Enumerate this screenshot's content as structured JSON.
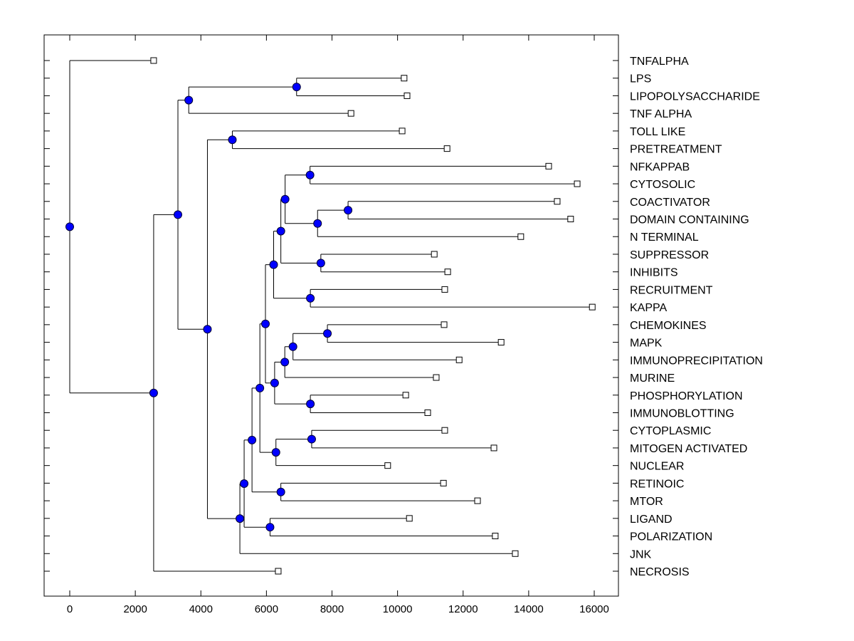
{
  "chart_data": {
    "type": "dendrogram",
    "title": "",
    "xlabel": "",
    "ylabel": "",
    "xlim": [
      -800,
      16700
    ],
    "x_ticks": [
      0,
      2000,
      4000,
      6000,
      8000,
      10000,
      12000,
      14000,
      16000
    ],
    "x_tick_labels": [
      "0",
      "2000",
      "4000",
      "6000",
      "8000",
      "10000",
      "12000",
      "14000",
      "16000"
    ],
    "grid": false,
    "leaves": [
      {
        "label": "TNFALPHA",
        "x": 2560
      },
      {
        "label": "LPS",
        "x": 10200
      },
      {
        "label": "LIPOPOLYSACCHARIDE",
        "x": 10290
      },
      {
        "label": "TNF ALPHA",
        "x": 8580
      },
      {
        "label": "TOLL LIKE",
        "x": 10140
      },
      {
        "label": "PRETREATMENT",
        "x": 11510
      },
      {
        "label": "NFKAPPAB",
        "x": 14610
      },
      {
        "label": "CYTOSOLIC",
        "x": 15480
      },
      {
        "label": "COACTIVATOR",
        "x": 14870
      },
      {
        "label": "DOMAIN CONTAINING",
        "x": 15280
      },
      {
        "label": "N TERMINAL",
        "x": 13760
      },
      {
        "label": "SUPPRESSOR",
        "x": 11120
      },
      {
        "label": "INHIBITS",
        "x": 11530
      },
      {
        "label": "RECRUITMENT",
        "x": 11440
      },
      {
        "label": "KAPPA",
        "x": 15940
      },
      {
        "label": "CHEMOKINES",
        "x": 11420
      },
      {
        "label": "MAPK",
        "x": 13160
      },
      {
        "label": "IMMUNOPRECIPITATION",
        "x": 11880
      },
      {
        "label": "MURINE",
        "x": 11180
      },
      {
        "label": "PHOSPHORYLATION",
        "x": 10250
      },
      {
        "label": "IMMUNOBLOTTING",
        "x": 10920
      },
      {
        "label": "CYTOPLASMIC",
        "x": 11440
      },
      {
        "label": "MITOGEN ACTIVATED",
        "x": 12940
      },
      {
        "label": "NUCLEAR",
        "x": 9700
      },
      {
        "label": "RETINOIC",
        "x": 11400
      },
      {
        "label": "MTOR",
        "x": 12440
      },
      {
        "label": "LIGAND",
        "x": 10360
      },
      {
        "label": "POLARIZATION",
        "x": 12980
      },
      {
        "label": "JNK",
        "x": 13590
      },
      {
        "label": "NECROSIS",
        "x": 6360
      }
    ],
    "tree": {
      "x": 0,
      "children": [
        {
          "leaf": 0
        },
        {
          "x": 2560,
          "children": [
            {
              "x": 3300,
              "children": [
                {
                  "x": 3630,
                  "children": [
                    {
                      "x": 6920,
                      "children": [
                        {
                          "leaf": 1
                        },
                        {
                          "leaf": 2
                        }
                      ]
                    },
                    {
                      "leaf": 3
                    }
                  ]
                },
                {
                  "x": 4200,
                  "children": [
                    {
                      "x": 4960,
                      "children": [
                        {
                          "leaf": 4
                        },
                        {
                          "leaf": 5
                        }
                      ]
                    },
                    {
                      "x": 5190,
                      "children": [
                        {
                          "x": 5320,
                          "children": [
                            {
                              "x": 5560,
                              "children": [
                                {
                                  "x": 5800,
                                  "children": [
                                    {
                                      "x": 5970,
                                      "children": [
                                        {
                                          "x": 6220,
                                          "children": [
                                            {
                                              "x": 6440,
                                              "children": [
                                                {
                                                  "x": 6570,
                                                  "children": [
                                                    {
                                                      "x": 7330,
                                                      "children": [
                                                        {
                                                          "leaf": 6
                                                        },
                                                        {
                                                          "leaf": 7
                                                        }
                                                      ]
                                                    },
                                                    {
                                                      "x": 7560,
                                                      "children": [
                                                        {
                                                          "x": 8490,
                                                          "children": [
                                                            {
                                                              "leaf": 8
                                                            },
                                                            {
                                                              "leaf": 9
                                                            }
                                                          ]
                                                        },
                                                        {
                                                          "leaf": 10
                                                        }
                                                      ]
                                                    }
                                                  ]
                                                },
                                                {
                                                  "x": 7660,
                                                  "children": [
                                                    {
                                                      "leaf": 11
                                                    },
                                                    {
                                                      "leaf": 12
                                                    }
                                                  ]
                                                }
                                              ]
                                            },
                                            {
                                              "x": 7340,
                                              "children": [
                                                {
                                                  "leaf": 13
                                                },
                                                {
                                                  "leaf": 14
                                                }
                                              ]
                                            }
                                          ]
                                        },
                                        {
                                          "x": 6250,
                                          "children": [
                                            {
                                              "x": 6560,
                                              "children": [
                                                {
                                                  "x": 6810,
                                                  "children": [
                                                    {
                                                      "x": 7860,
                                                      "children": [
                                                        {
                                                          "leaf": 15
                                                        },
                                                        {
                                                          "leaf": 16
                                                        }
                                                      ]
                                                    },
                                                    {
                                                      "leaf": 17
                                                    }
                                                  ]
                                                },
                                                {
                                                  "leaf": 18
                                                }
                                              ]
                                            },
                                            {
                                              "x": 7340,
                                              "children": [
                                                {
                                                  "leaf": 19
                                                },
                                                {
                                                  "leaf": 20
                                                }
                                              ]
                                            }
                                          ]
                                        }
                                      ]
                                    },
                                    {
                                      "x": 6290,
                                      "children": [
                                        {
                                          "x": 7380,
                                          "children": [
                                            {
                                              "leaf": 21
                                            },
                                            {
                                              "leaf": 22
                                            }
                                          ]
                                        },
                                        {
                                          "leaf": 23
                                        }
                                      ]
                                    }
                                  ]
                                },
                                {
                                  "x": 6440,
                                  "children": [
                                    {
                                      "leaf": 24
                                    },
                                    {
                                      "leaf": 25
                                    }
                                  ]
                                }
                              ]
                            },
                            {
                              "x": 6110,
                              "children": [
                                {
                                  "leaf": 26
                                },
                                {
                                  "leaf": 27
                                }
                              ]
                            }
                          ]
                        },
                        {
                          "leaf": 28
                        }
                      ]
                    }
                  ]
                }
              ]
            },
            {
              "leaf": 29
            }
          ]
        }
      ]
    },
    "colors": {
      "node_fill": "#0000ff",
      "node_stroke": "#000033",
      "leaf_fill": "#ffffff",
      "line": "#000000"
    }
  }
}
